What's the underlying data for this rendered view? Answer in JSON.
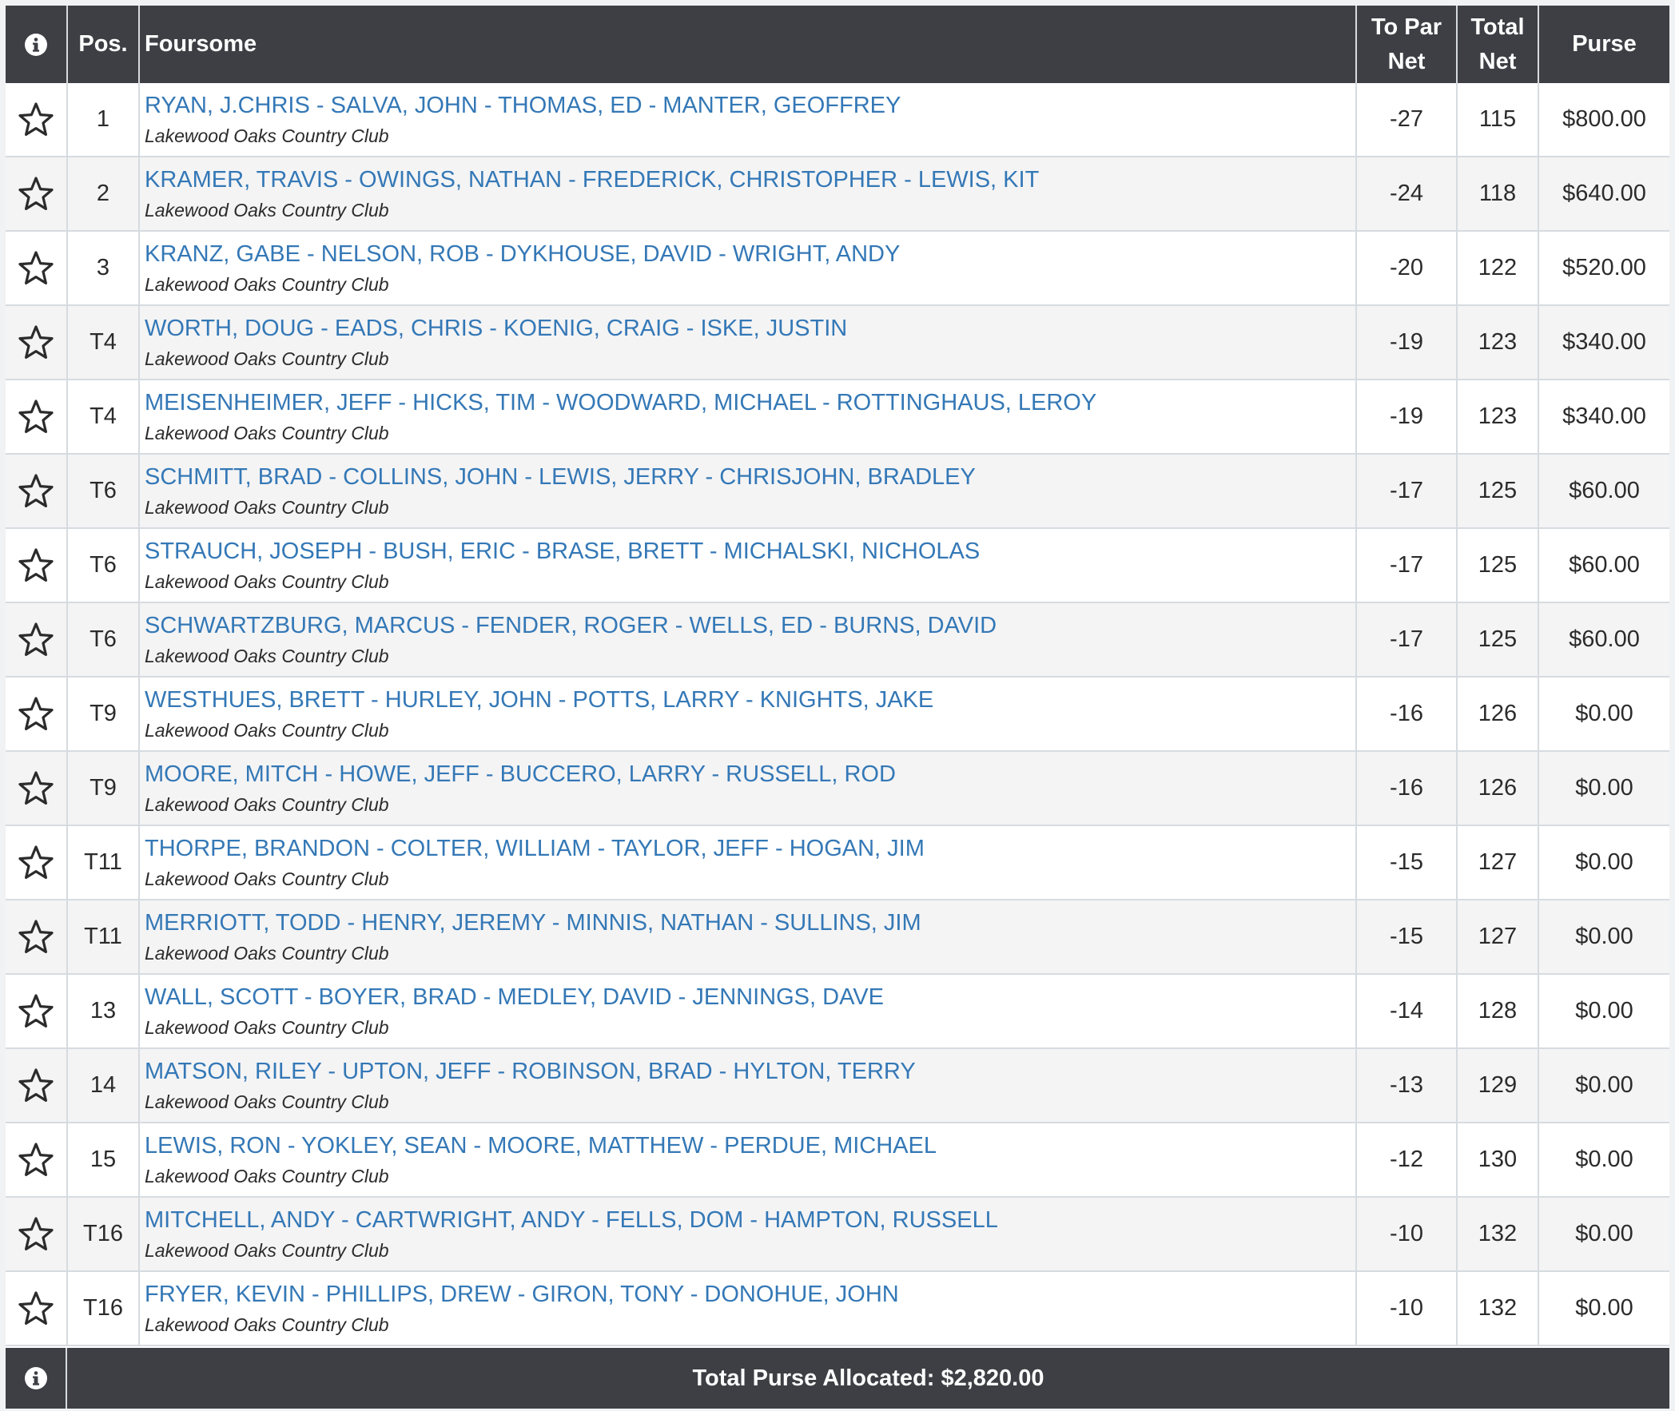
{
  "header": {
    "info_icon": "info-circle-icon",
    "pos": "Pos.",
    "foursome": "Foursome",
    "to_par_net_line1": "To Par",
    "to_par_net_line2": "Net",
    "total_net_line1": "Total",
    "total_net_line2": "Net",
    "purse": "Purse"
  },
  "colors": {
    "header_bg": "#3e3f44",
    "link": "#3478b6",
    "row_alt": "#f4f4f5",
    "border": "#d6dbe0"
  },
  "rows": [
    {
      "pos": "1",
      "players": "RYAN, J.CHRIS - SALVA, JOHN - THOMAS, ED - MANTER, GEOFFREY",
      "club": "Lakewood Oaks Country Club",
      "to_par": "-27",
      "total": "115",
      "purse": "$800.00"
    },
    {
      "pos": "2",
      "players": "KRAMER, TRAVIS - OWINGS, NATHAN - FREDERICK, CHRISTOPHER - LEWIS, KIT",
      "club": "Lakewood Oaks Country Club",
      "to_par": "-24",
      "total": "118",
      "purse": "$640.00"
    },
    {
      "pos": "3",
      "players": "KRANZ, GABE - NELSON, ROB - DYKHOUSE, DAVID - WRIGHT, ANDY",
      "club": "Lakewood Oaks Country Club",
      "to_par": "-20",
      "total": "122",
      "purse": "$520.00"
    },
    {
      "pos": "T4",
      "players": "WORTH, DOUG - EADS, CHRIS - KOENIG, CRAIG - ISKE, JUSTIN",
      "club": "Lakewood Oaks Country Club",
      "to_par": "-19",
      "total": "123",
      "purse": "$340.00"
    },
    {
      "pos": "T4",
      "players": "MEISENHEIMER, JEFF - HICKS, TIM - WOODWARD, MICHAEL - ROTTINGHAUS, LEROY",
      "club": "Lakewood Oaks Country Club",
      "to_par": "-19",
      "total": "123",
      "purse": "$340.00"
    },
    {
      "pos": "T6",
      "players": "SCHMITT, BRAD - COLLINS, JOHN - LEWIS, JERRY - CHRISJOHN, BRADLEY",
      "club": "Lakewood Oaks Country Club",
      "to_par": "-17",
      "total": "125",
      "purse": "$60.00"
    },
    {
      "pos": "T6",
      "players": "STRAUCH, JOSEPH - BUSH, ERIC - BRASE, BRETT - MICHALSKI, NICHOLAS",
      "club": "Lakewood Oaks Country Club",
      "to_par": "-17",
      "total": "125",
      "purse": "$60.00"
    },
    {
      "pos": "T6",
      "players": "SCHWARTZBURG, MARCUS - FENDER, ROGER - WELLS, ED - BURNS, DAVID",
      "club": "Lakewood Oaks Country Club",
      "to_par": "-17",
      "total": "125",
      "purse": "$60.00"
    },
    {
      "pos": "T9",
      "players": "WESTHUES, BRETT - HURLEY, JOHN - POTTS, LARRY - KNIGHTS, JAKE",
      "club": "Lakewood Oaks Country Club",
      "to_par": "-16",
      "total": "126",
      "purse": "$0.00"
    },
    {
      "pos": "T9",
      "players": "MOORE, MITCH - HOWE, JEFF - BUCCERO, LARRY - RUSSELL, ROD",
      "club": "Lakewood Oaks Country Club",
      "to_par": "-16",
      "total": "126",
      "purse": "$0.00"
    },
    {
      "pos": "T11",
      "players": "THORPE, BRANDON - COLTER, WILLIAM - TAYLOR, JEFF - HOGAN, JIM",
      "club": "Lakewood Oaks Country Club",
      "to_par": "-15",
      "total": "127",
      "purse": "$0.00"
    },
    {
      "pos": "T11",
      "players": "MERRIOTT, TODD - HENRY, JEREMY - MINNIS, NATHAN - SULLINS, JIM",
      "club": "Lakewood Oaks Country Club",
      "to_par": "-15",
      "total": "127",
      "purse": "$0.00"
    },
    {
      "pos": "13",
      "players": "WALL, SCOTT - BOYER, BRAD - MEDLEY, DAVID - JENNINGS, DAVE",
      "club": "Lakewood Oaks Country Club",
      "to_par": "-14",
      "total": "128",
      "purse": "$0.00"
    },
    {
      "pos": "14",
      "players": "MATSON, RILEY - UPTON, JEFF - ROBINSON, BRAD - HYLTON, TERRY",
      "club": "Lakewood Oaks Country Club",
      "to_par": "-13",
      "total": "129",
      "purse": "$0.00"
    },
    {
      "pos": "15",
      "players": "LEWIS, RON - YOKLEY, SEAN - MOORE, MATTHEW - PERDUE, MICHAEL",
      "club": "Lakewood Oaks Country Club",
      "to_par": "-12",
      "total": "130",
      "purse": "$0.00"
    },
    {
      "pos": "T16",
      "players": "MITCHELL, ANDY - CARTWRIGHT, ANDY - FELLS, DOM - HAMPTON, RUSSELL",
      "club": "Lakewood Oaks Country Club",
      "to_par": "-10",
      "total": "132",
      "purse": "$0.00"
    },
    {
      "pos": "T16",
      "players": "FRYER, KEVIN - PHILLIPS, DREW - GIRON, TONY - DONOHUE, JOHN",
      "club": "Lakewood Oaks Country Club",
      "to_par": "-10",
      "total": "132",
      "purse": "$0.00"
    }
  ],
  "row_icon": "star-outline-icon",
  "footer": {
    "info_icon": "info-circle-icon",
    "total_purse": "Total Purse Allocated: $2,820.00"
  }
}
